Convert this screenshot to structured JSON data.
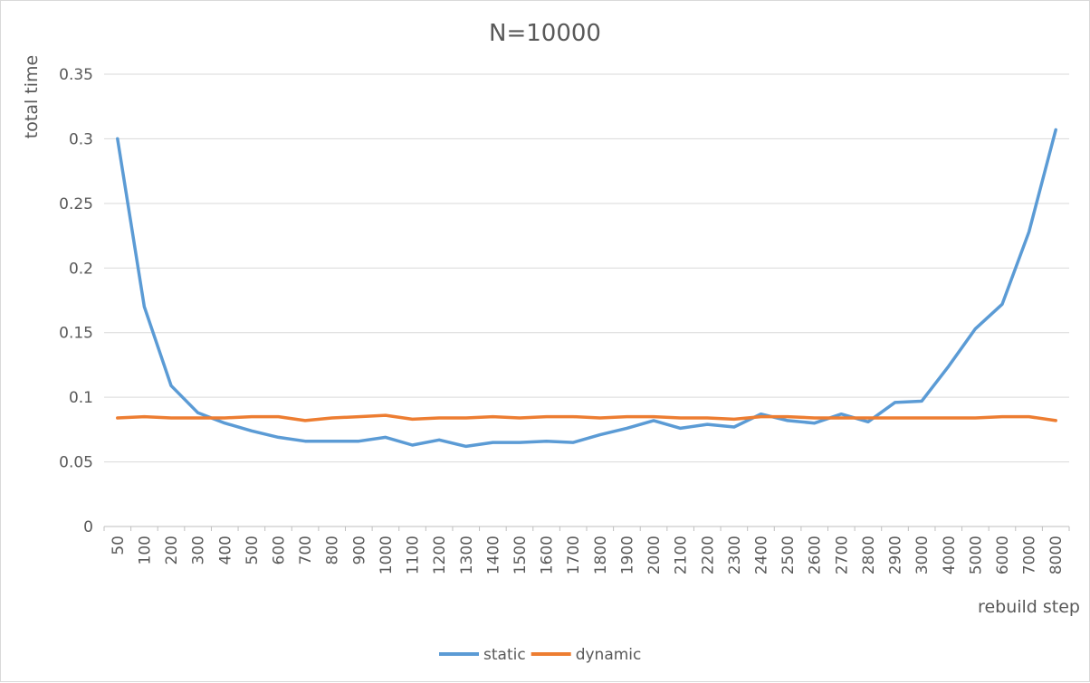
{
  "chart_data": {
    "type": "line",
    "title": "N=10000",
    "xlabel": "rebuild step",
    "ylabel": "total time",
    "ylim": [
      0,
      0.35
    ],
    "yticks": [
      "0",
      "0.05",
      "0.1",
      "0.15",
      "0.2",
      "0.25",
      "0.3",
      "0.35"
    ],
    "grid": true,
    "legend_position": "bottom",
    "categories": [
      "50",
      "100",
      "200",
      "300",
      "400",
      "500",
      "600",
      "700",
      "800",
      "900",
      "1000",
      "1100",
      "1200",
      "1300",
      "1400",
      "1500",
      "1600",
      "1700",
      "1800",
      "1900",
      "2000",
      "2100",
      "2200",
      "2300",
      "2400",
      "2500",
      "2600",
      "2700",
      "2800",
      "2900",
      "3000",
      "4000",
      "5000",
      "6000",
      "7000",
      "8000"
    ],
    "series": [
      {
        "name": "static",
        "color": "#5b9bd5",
        "values": [
          0.3,
          0.17,
          0.109,
          0.088,
          0.08,
          0.074,
          0.069,
          0.066,
          0.066,
          0.066,
          0.069,
          0.063,
          0.067,
          0.062,
          0.065,
          0.065,
          0.066,
          0.065,
          0.071,
          0.076,
          0.082,
          0.076,
          0.079,
          0.077,
          0.087,
          0.082,
          0.08,
          0.087,
          0.081,
          0.096,
          0.097,
          0.124,
          0.153,
          0.172,
          0.228,
          0.307
        ]
      },
      {
        "name": "dynamic",
        "color": "#ed7d31",
        "values": [
          0.084,
          0.085,
          0.084,
          0.084,
          0.084,
          0.085,
          0.085,
          0.082,
          0.084,
          0.085,
          0.086,
          0.083,
          0.084,
          0.084,
          0.085,
          0.084,
          0.085,
          0.085,
          0.084,
          0.085,
          0.085,
          0.084,
          0.084,
          0.083,
          0.085,
          0.085,
          0.084,
          0.084,
          0.084,
          0.084,
          0.084,
          0.084,
          0.084,
          0.085,
          0.085,
          0.082
        ]
      }
    ]
  }
}
